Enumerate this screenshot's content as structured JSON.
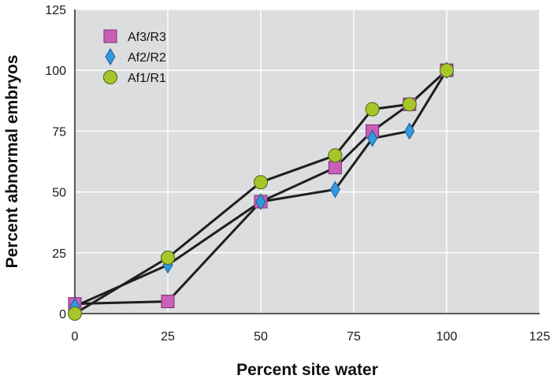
{
  "chart_data": {
    "type": "line",
    "xlabel": "Percent site water",
    "ylabel": "Percent abnormal embryos",
    "xlim": [
      0,
      125
    ],
    "ylim": [
      0,
      125
    ],
    "xticks": [
      "0",
      "25",
      "50",
      "75",
      "100",
      "125"
    ],
    "yticks": [
      "0",
      "25",
      "50",
      "75",
      "100",
      "125"
    ],
    "grid": true,
    "legend_position": "top-left",
    "series": [
      {
        "name": "Af3/R3",
        "marker": "square",
        "color": "#c85fb8",
        "points": [
          [
            0,
            4
          ],
          [
            25,
            5
          ],
          [
            50,
            46
          ],
          [
            70,
            60
          ],
          [
            80,
            75
          ],
          [
            90,
            86
          ],
          [
            100,
            100
          ]
        ]
      },
      {
        "name": "Af2/R2",
        "marker": "diamond",
        "color": "#3399dd",
        "points": [
          [
            0,
            3
          ],
          [
            25,
            20
          ],
          [
            50,
            46
          ],
          [
            70,
            51
          ],
          [
            80,
            72
          ],
          [
            90,
            75
          ],
          [
            100,
            100
          ]
        ]
      },
      {
        "name": "Af1/R1",
        "marker": "circle",
        "color": "#a6c62a",
        "points": [
          [
            0,
            0
          ],
          [
            25,
            23
          ],
          [
            50,
            54
          ],
          [
            70,
            65
          ],
          [
            80,
            84
          ],
          [
            90,
            86
          ],
          [
            100,
            100
          ]
        ]
      }
    ]
  },
  "colors": {
    "plot_background": "#dcdddf",
    "gridline": "#ffffff",
    "line": "#1e1e1e"
  }
}
